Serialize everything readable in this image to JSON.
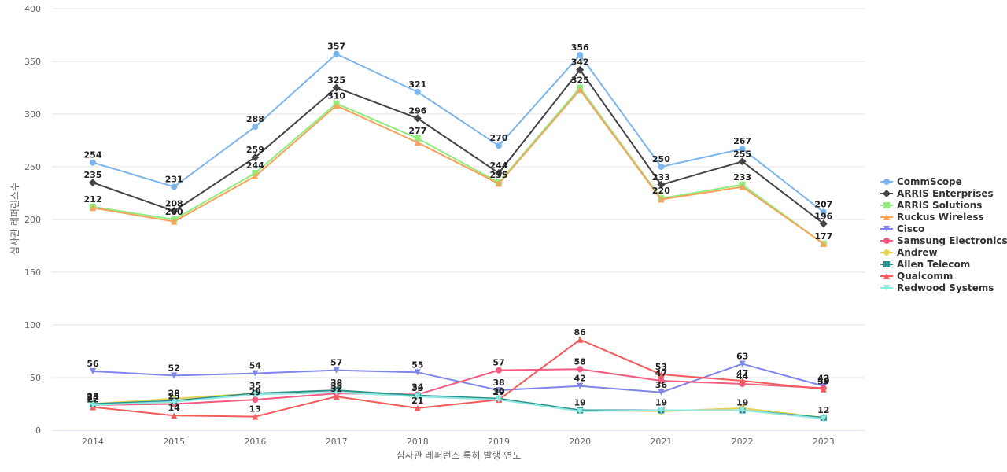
{
  "chart_data": {
    "type": "line",
    "title": "",
    "xlabel": "심사관 레퍼런스 특허 발행 연도",
    "ylabel": "심사관 레퍼런스수",
    "x": [
      "2014",
      "2015",
      "2016",
      "2017",
      "2018",
      "2019",
      "2020",
      "2021",
      "2022",
      "2023"
    ],
    "ylim": [
      0,
      400
    ],
    "yticks": [
      0,
      50,
      100,
      150,
      200,
      250,
      300,
      350,
      400
    ],
    "grid": "horizontal",
    "legend_position": "right",
    "series": [
      {
        "name": "CommScope",
        "color": "#7cb5ec",
        "marker": "circle",
        "values": [
          254,
          231,
          288,
          357,
          321,
          270,
          356,
          250,
          267,
          207
        ],
        "labeled": true
      },
      {
        "name": "ARRIS Enterprises",
        "color": "#434348",
        "marker": "diamond",
        "values": [
          235,
          208,
          259,
          325,
          296,
          244,
          342,
          233,
          255,
          196
        ],
        "labeled": true
      },
      {
        "name": "ARRIS Solutions",
        "color": "#90ed7d",
        "marker": "square",
        "values": [
          212,
          200,
          244,
          310,
          277,
          235,
          325,
          220,
          233,
          177
        ],
        "labeled": true
      },
      {
        "name": "Ruckus Wireless",
        "color": "#f7a35c",
        "marker": "triangle",
        "values": [
          211,
          198,
          241,
          308,
          273,
          234,
          323,
          219,
          231,
          177
        ],
        "labeled": false
      },
      {
        "name": "Cisco",
        "color": "#8085e9",
        "marker": "triangle-down",
        "values": [
          56,
          52,
          54,
          57,
          55,
          38,
          42,
          36,
          63,
          42
        ],
        "labeled": true
      },
      {
        "name": "Samsung Electronics",
        "color": "#f15c80",
        "marker": "circle",
        "values": [
          24,
          25,
          29,
          35,
          34,
          57,
          58,
          47,
          44,
          40
        ],
        "labeled": true
      },
      {
        "name": "Andrew",
        "color": "#e4d354",
        "marker": "diamond",
        "values": [
          25,
          30,
          35,
          38,
          33,
          30,
          19,
          18,
          21,
          12
        ],
        "labeled": false
      },
      {
        "name": "Allen Telecom",
        "color": "#2b908f",
        "marker": "square",
        "values": [
          25,
          28,
          35,
          38,
          33,
          30,
          19,
          19,
          19,
          12
        ],
        "labeled": true
      },
      {
        "name": "Qualcomm",
        "color": "#f45b5b",
        "marker": "triangle",
        "values": [
          22,
          14,
          13,
          32,
          21,
          29,
          86,
          53,
          47,
          39
        ],
        "labeled": true
      },
      {
        "name": "Redwood Systems",
        "color": "#91e8e1",
        "marker": "triangle-down",
        "values": [
          24,
          27,
          34,
          36,
          32,
          29,
          18,
          19,
          19,
          11
        ],
        "labeled": false
      }
    ]
  }
}
